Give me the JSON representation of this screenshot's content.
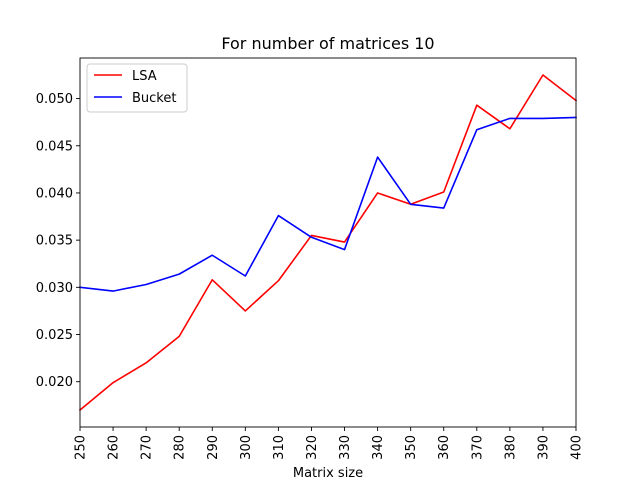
{
  "chart_data": {
    "type": "line",
    "title": "For number of matrices 10",
    "xlabel": "Matrix size",
    "ylabel": "",
    "x": [
      250,
      260,
      270,
      280,
      290,
      300,
      310,
      320,
      330,
      340,
      350,
      360,
      370,
      380,
      390,
      400
    ],
    "xlim": [
      250,
      400
    ],
    "ylim": [
      0.0152,
      0.0543
    ],
    "yticks": [
      0.02,
      0.025,
      0.03,
      0.035,
      0.04,
      0.045,
      0.05
    ],
    "ytick_labels": [
      "0.020",
      "0.025",
      "0.030",
      "0.035",
      "0.040",
      "0.045",
      "0.050"
    ],
    "xtick_labels": [
      "250",
      "260",
      "270",
      "280",
      "290",
      "300",
      "310",
      "320",
      "330",
      "340",
      "350",
      "360",
      "370",
      "380",
      "390",
      "400"
    ],
    "grid": false,
    "legend_position": "top-left",
    "series": [
      {
        "name": "LSA",
        "color": "#ff0000",
        "values": [
          0.017,
          0.0199,
          0.022,
          0.0248,
          0.0308,
          0.0275,
          0.0307,
          0.0355,
          0.0348,
          0.04,
          0.0388,
          0.0401,
          0.0493,
          0.0468,
          0.0525,
          0.0498
        ]
      },
      {
        "name": "Bucket",
        "color": "#0000ff",
        "values": [
          0.03,
          0.0296,
          0.0303,
          0.0314,
          0.0334,
          0.0312,
          0.0376,
          0.0353,
          0.034,
          0.0438,
          0.0388,
          0.0384,
          0.0467,
          0.0479,
          0.0479,
          0.048
        ]
      }
    ]
  }
}
